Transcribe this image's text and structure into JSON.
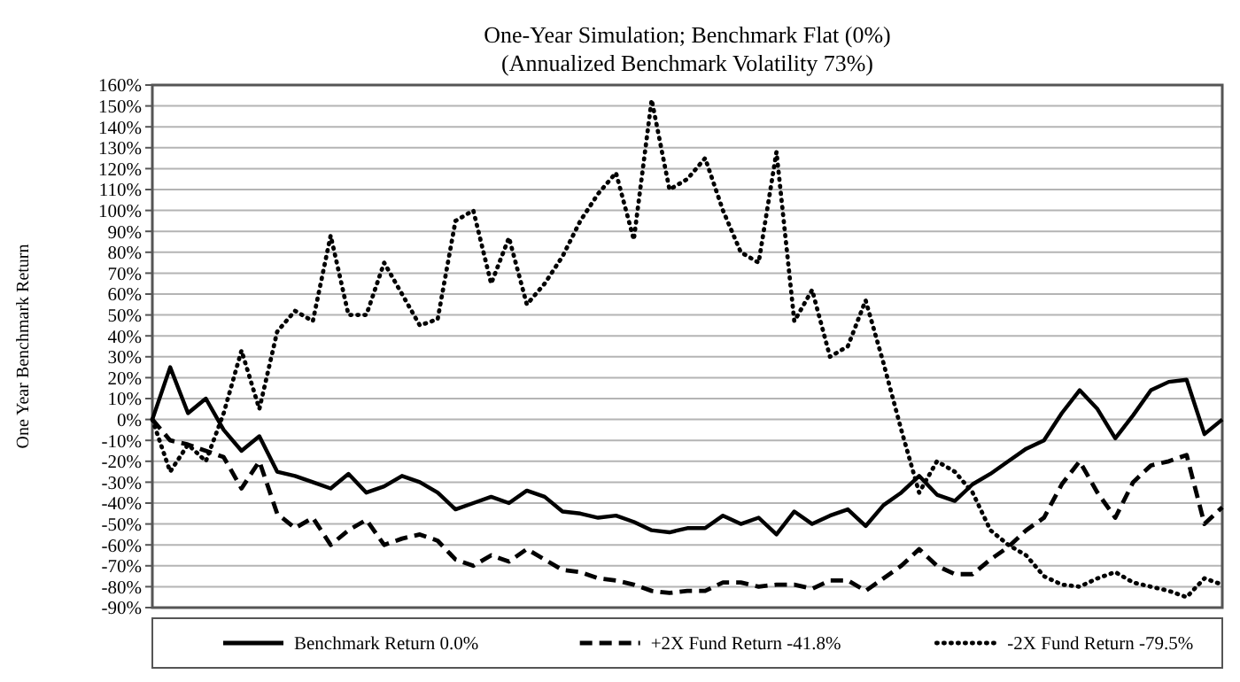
{
  "chart_data": {
    "type": "line",
    "title": "One-Year Simulation; Benchmark Flat (0%)",
    "subtitle": "(Annualized Benchmark Volatility 73%)",
    "ylabel": "One Year Benchmark Return",
    "categories": [
      null,
      null,
      null,
      null,
      null,
      null,
      null,
      null,
      null,
      null,
      null,
      null,
      null,
      null,
      null,
      null,
      null,
      null,
      null,
      null,
      null,
      null,
      null,
      null,
      null,
      null,
      null,
      null,
      null,
      null,
      null,
      null,
      null,
      null,
      null,
      null,
      null,
      null,
      null,
      null,
      null,
      null,
      null,
      null,
      null,
      null,
      null,
      null,
      null,
      null,
      null,
      null,
      null,
      null,
      null,
      null,
      null,
      null,
      null,
      null,
      null
    ],
    "series": [
      {
        "name": "Benchmark Return 0.0%",
        "color": "#000000",
        "line_style": "solid",
        "values": [
          0,
          25,
          3,
          10,
          -5,
          -15,
          -8,
          -25,
          -27,
          -30,
          -33,
          -26,
          -35,
          -32,
          -27,
          -30,
          -35,
          -43,
          -40,
          -37,
          -40,
          -34,
          -37,
          -44,
          -45,
          -47,
          -46,
          -49,
          -53,
          -54,
          -52,
          -52,
          -46,
          -50,
          -47,
          -55,
          -44,
          -50,
          -46,
          -43,
          -51,
          -41,
          -35,
          -27,
          -36,
          -39,
          -31,
          -26,
          -20,
          -14,
          -10,
          3,
          14,
          5,
          -9,
          2,
          14,
          18,
          19,
          -7,
          0
        ]
      },
      {
        "name": "+2X Fund Return -41.8%",
        "color": "#000000",
        "line_style": "dashed",
        "values": [
          0,
          -10,
          -12,
          -15,
          -18,
          -33,
          -20,
          -45,
          -52,
          -47,
          -60,
          -53,
          -48,
          -60,
          -57,
          -55,
          -58,
          -67,
          -70,
          -65,
          -68,
          -62,
          -67,
          -72,
          -73,
          -76,
          -77,
          -79,
          -82,
          -83,
          -82,
          -82,
          -78,
          -78,
          -80,
          -79,
          -79,
          -81,
          -77,
          -77,
          -82,
          -76,
          -70,
          -62,
          -70,
          -74,
          -74,
          -67,
          -61,
          -53,
          -47,
          -31,
          -20,
          -35,
          -47,
          -30,
          -22,
          -20,
          -17,
          -50,
          -42
        ]
      },
      {
        "name": "-2X Fund Return -79.5%",
        "color": "#000000",
        "line_style": "dotted",
        "values": [
          0,
          -25,
          -12,
          -20,
          3,
          33,
          5,
          42,
          52,
          47,
          88,
          50,
          50,
          75,
          60,
          45,
          48,
          95,
          100,
          65,
          87,
          55,
          65,
          78,
          95,
          108,
          118,
          86,
          153,
          110,
          115,
          125,
          100,
          80,
          75,
          128,
          47,
          62,
          30,
          35,
          57,
          27,
          -5,
          -35,
          -20,
          -25,
          -35,
          -53,
          -60,
          -65,
          -75,
          -79,
          -80,
          -76,
          -73,
          -78,
          -80,
          -82,
          -85,
          -76,
          -79
        ]
      }
    ],
    "ylim": [
      -90,
      160
    ],
    "yticks": [
      {
        "value": -90,
        "label": "-90%"
      },
      {
        "value": -80,
        "label": "-80%"
      },
      {
        "value": -70,
        "label": "-70%"
      },
      {
        "value": -60,
        "label": "-60%"
      },
      {
        "value": -50,
        "label": "-50%"
      },
      {
        "value": -40,
        "label": "-40%"
      },
      {
        "value": -30,
        "label": "-30%"
      },
      {
        "value": -20,
        "label": "-20%"
      },
      {
        "value": -10,
        "label": "-10%"
      },
      {
        "value": 0,
        "label": "0%"
      },
      {
        "value": 10,
        "label": "10%"
      },
      {
        "value": 20,
        "label": "20%"
      },
      {
        "value": 30,
        "label": "30%"
      },
      {
        "value": 40,
        "label": "40%"
      },
      {
        "value": 50,
        "label": "50%"
      },
      {
        "value": 60,
        "label": "60%"
      },
      {
        "value": 70,
        "label": "70%"
      },
      {
        "value": 80,
        "label": "80%"
      },
      {
        "value": 90,
        "label": "90%"
      },
      {
        "value": 100,
        "label": "100%"
      },
      {
        "value": 110,
        "label": "110%"
      },
      {
        "value": 120,
        "label": "120%"
      },
      {
        "value": 130,
        "label": "130%"
      },
      {
        "value": 140,
        "label": "140%"
      },
      {
        "value": 150,
        "label": "150%"
      },
      {
        "value": 160,
        "label": "160%"
      }
    ],
    "grid": "y",
    "legend": "bottom",
    "tick_labels": "y",
    "marker": "none"
  }
}
